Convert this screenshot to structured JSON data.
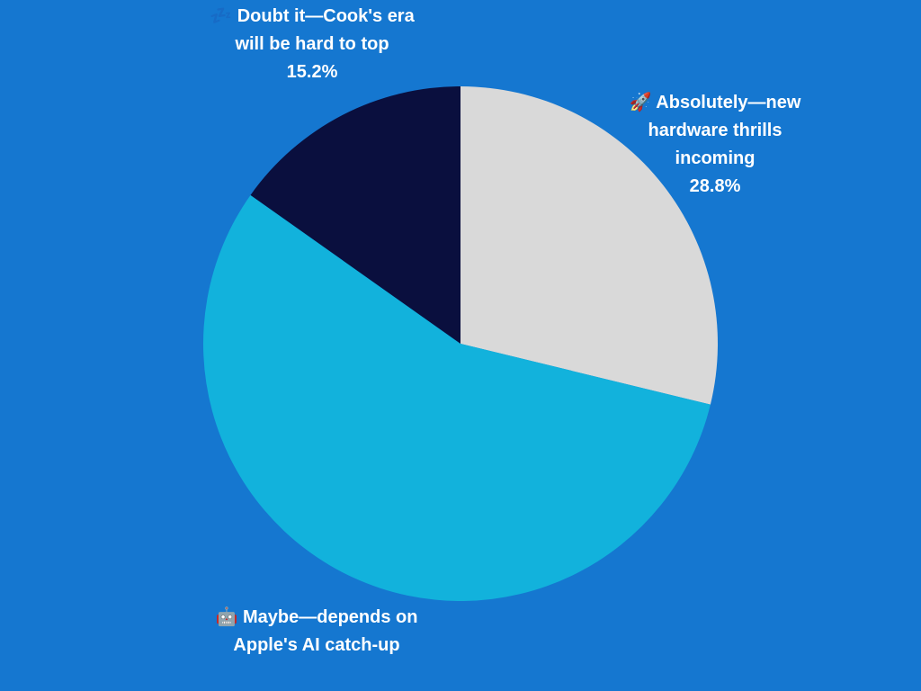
{
  "chart_data": {
    "type": "pie",
    "categories": [
      "🚀 Absolutely—new hardware thrills incoming",
      "🤖 Maybe—depends on Apple's AI catch-up",
      "💤 Doubt it—Cook's era will be hard to top"
    ],
    "values": [
      28.8,
      56.0,
      15.2
    ],
    "value_labels": [
      "28.8%",
      null,
      "15.2%"
    ],
    "colors": [
      "#d9d9d9",
      "#12b2dc",
      "#0a0f3e"
    ]
  }
}
